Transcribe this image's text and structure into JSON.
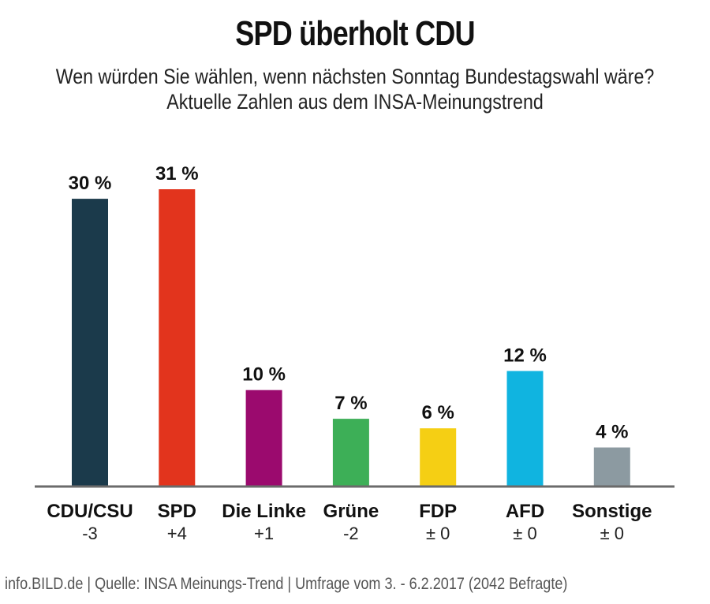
{
  "chart_data": {
    "type": "bar",
    "title": "SPD überholt CDU",
    "subtitle_lines": [
      "Wen würden Sie wählen, wenn nächsten Sonntag Bundestagswahl wäre?",
      "Aktuelle Zahlen aus dem INSA-Meinungstrend"
    ],
    "xlabel": "",
    "ylabel": "",
    "ylim": [
      0,
      32
    ],
    "grid": false,
    "legend": "none",
    "unit": "%",
    "categories": [
      "CDU/CSU",
      "SPD",
      "Die Linke",
      "Grüne",
      "FDP",
      "AFD",
      "Sonstige"
    ],
    "values": [
      30,
      31,
      10,
      7,
      6,
      12,
      4
    ],
    "value_labels": [
      "30 %",
      "31 %",
      "10 %",
      "7 %",
      "6 %",
      "12 %",
      "4 %"
    ],
    "changes": [
      "-3",
      "+4",
      "+1",
      "-2",
      "± 0",
      "± 0",
      "± 0"
    ],
    "colors": [
      "#1b3a4b",
      "#e2341d",
      "#9b0a6e",
      "#3daf57",
      "#f5cf14",
      "#10b4e0",
      "#8c9aa1"
    ],
    "footer": "info.BILD.de | Quelle: INSA Meinungs-Trend | Umfrage vom 3. - 6.2.2017 (2042 Befragte)"
  }
}
